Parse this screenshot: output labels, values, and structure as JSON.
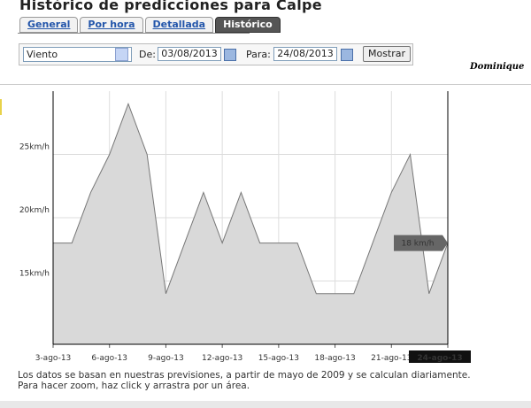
{
  "header": {
    "title": "Histórico de predicciones para Calpe"
  },
  "tabs": [
    "General",
    "Por hora",
    "Detallada",
    "Histórico"
  ],
  "form": {
    "variable": "Viento",
    "from_label": "De:",
    "from": "03/08/2013",
    "to_label": "Para:",
    "to": "24/08/2013",
    "button": "Mostrar"
  },
  "signature": "Dominique",
  "chart_data": {
    "type": "area",
    "categories": [
      "3-ago-13",
      null,
      null,
      "6-ago-13",
      null,
      null,
      "9-ago-13",
      null,
      null,
      "12-ago-13",
      null,
      null,
      "15-ago-13",
      null,
      null,
      "18-ago-13",
      null,
      null,
      "21-ago-13",
      null,
      null,
      "24-ago-13"
    ],
    "series": [
      {
        "name": "Viento",
        "color": "#d9d9d9",
        "values": [
          18,
          18,
          22,
          25,
          29,
          25,
          14,
          18,
          22,
          18,
          22,
          18,
          18,
          18,
          14,
          14,
          14,
          18,
          22,
          25,
          14,
          18
        ]
      }
    ],
    "ylim": [
      10,
      30
    ],
    "yticks": [
      {
        "value": 15,
        "label": "15km/h"
      },
      {
        "value": 20,
        "label": "20km/h"
      },
      {
        "value": 25,
        "label": "25km/h"
      }
    ],
    "grid": true,
    "tooltip": {
      "label": "18 km/h"
    }
  },
  "footer": [
    "Los datos se basan en nuestras previsiones, a partir de mayo de 2009 y se calculan diariamente.",
    "Para hacer zoom, haz click y arrastra por un área."
  ]
}
